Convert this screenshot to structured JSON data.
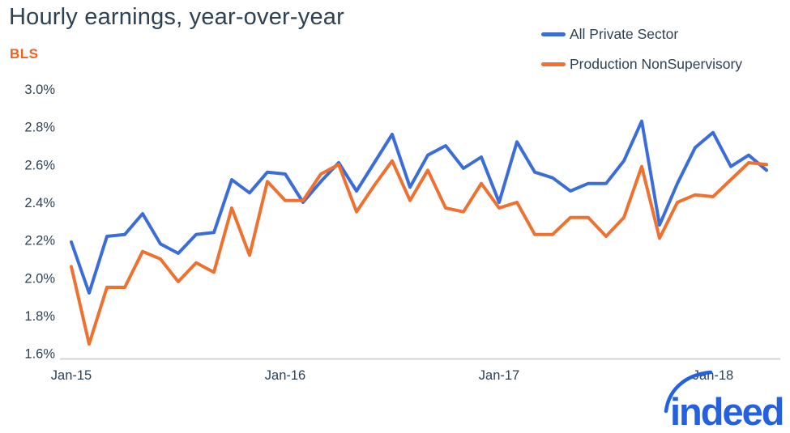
{
  "header": {
    "title": "Hourly earnings, year-over-year",
    "source": "BLS"
  },
  "legend": {
    "position": "top-right",
    "items": [
      {
        "label": "All Private Sector",
        "color": "#3b6dd9"
      },
      {
        "label": "Production NonSupervisory",
        "color": "#ee7130"
      }
    ]
  },
  "branding": {
    "logo_text": "indeed",
    "logo_color": "#2361e0"
  },
  "colors": {
    "text_navy": "#2e4154",
    "source_orange": "#f0611f",
    "axis_gray": "#d4d4d6",
    "background": "#ffffff"
  },
  "chart_data": {
    "type": "line",
    "title": "Hourly earnings, year-over-year",
    "source": "BLS",
    "grid": false,
    "legend_position": "top-right",
    "ylabel": "",
    "xlabel": "",
    "ylim": [
      1.6,
      3.0
    ],
    "y_tick_step": 0.2,
    "y_tick_labels": [
      "1.6%",
      "1.8%",
      "2.0%",
      "2.2%",
      "2.4%",
      "2.6%",
      "2.8%",
      "3.0%"
    ],
    "x_tick_labels": [
      "Jan-15",
      "Jan-16",
      "Jan-17",
      "Jan-18"
    ],
    "months": [
      "Jan-15",
      "Feb-15",
      "Mar-15",
      "Apr-15",
      "May-15",
      "Jun-15",
      "Jul-15",
      "Aug-15",
      "Sep-15",
      "Oct-15",
      "Nov-15",
      "Dec-15",
      "Jan-16",
      "Feb-16",
      "Mar-16",
      "Apr-16",
      "May-16",
      "Jun-16",
      "Jul-16",
      "Aug-16",
      "Sep-16",
      "Oct-16",
      "Nov-16",
      "Dec-16",
      "Jan-17",
      "Feb-17",
      "Mar-17",
      "Apr-17",
      "May-17",
      "Jun-17",
      "Jul-17",
      "Aug-17",
      "Sep-17",
      "Oct-17",
      "Nov-17",
      "Dec-17",
      "Jan-18",
      "Feb-18",
      "Mar-18",
      "Apr-18"
    ],
    "series": [
      {
        "name": "All Private Sector",
        "color": "#3b6dd9",
        "values": [
          2.19,
          1.92,
          2.22,
          2.23,
          2.34,
          2.18,
          2.13,
          2.23,
          2.24,
          2.52,
          2.45,
          2.56,
          2.55,
          2.4,
          2.51,
          2.61,
          2.46,
          2.61,
          2.76,
          2.48,
          2.65,
          2.7,
          2.58,
          2.64,
          2.4,
          2.72,
          2.56,
          2.53,
          2.46,
          2.5,
          2.5,
          2.62,
          2.83,
          2.28,
          2.5,
          2.69,
          2.77,
          2.59,
          2.65,
          2.57
        ]
      },
      {
        "name": "Production NonSupervisory",
        "color": "#ee7130",
        "values": [
          2.06,
          1.65,
          1.95,
          1.95,
          2.14,
          2.1,
          1.98,
          2.08,
          2.03,
          2.37,
          2.12,
          2.51,
          2.41,
          2.41,
          2.55,
          2.6,
          2.35,
          2.49,
          2.62,
          2.41,
          2.57,
          2.37,
          2.35,
          2.5,
          2.37,
          2.4,
          2.23,
          2.23,
          2.32,
          2.32,
          2.22,
          2.32,
          2.59,
          2.21,
          2.4,
          2.44,
          2.43,
          2.52,
          2.61,
          2.6
        ]
      }
    ]
  }
}
